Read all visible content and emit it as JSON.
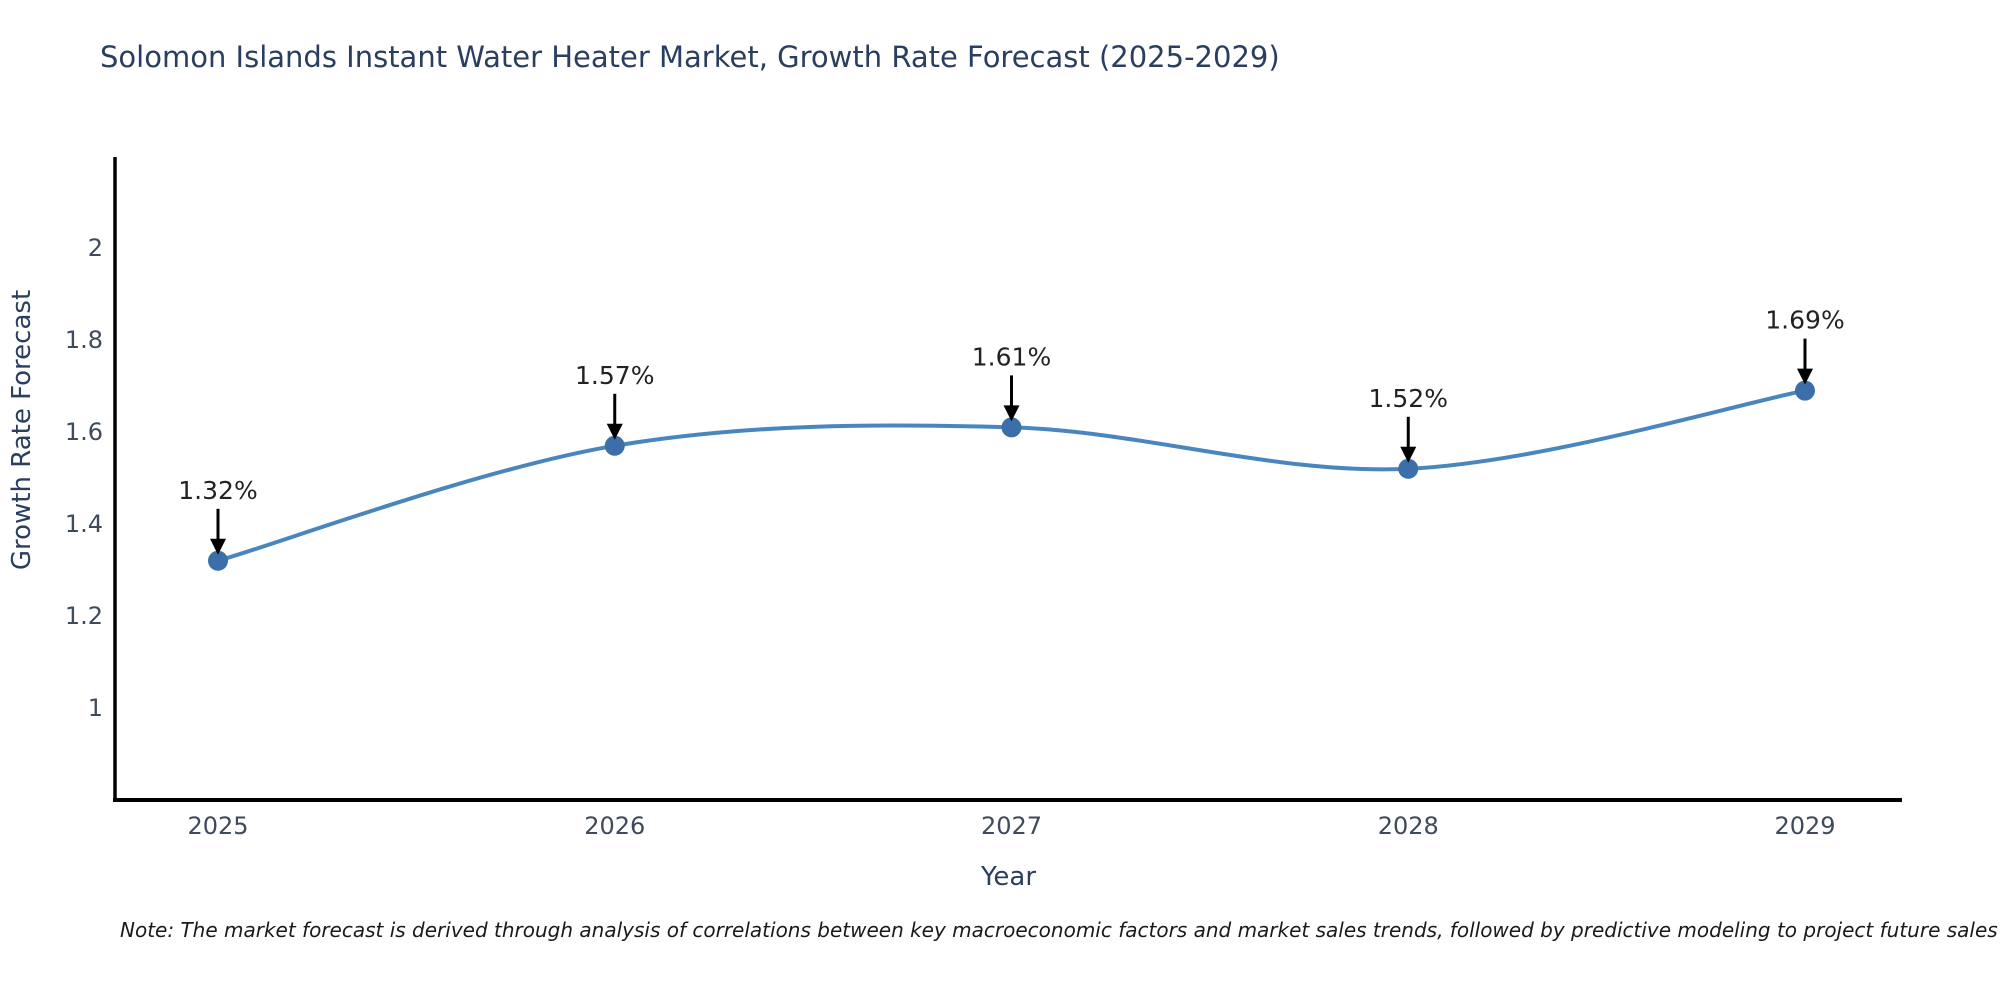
{
  "title": "Solomon Islands Instant Water Heater Market, Growth Rate Forecast (2025-2029)",
  "note": "Note: The market forecast is derived through analysis of correlations between key macroeconomic factors and market sales trends, followed by predictive modeling to project future sales",
  "chart_data": {
    "type": "line",
    "title": "Solomon Islands Instant Water Heater Market, Growth Rate Forecast (2025-2029)",
    "xlabel": "Year",
    "ylabel": "Growth Rate Forecast",
    "x": [
      2025,
      2026,
      2027,
      2028,
      2029
    ],
    "categories": [
      "2025",
      "2026",
      "2027",
      "2028",
      "2029"
    ],
    "series": [
      {
        "name": "Growth Rate Forecast",
        "values": [
          1.32,
          1.57,
          1.61,
          1.52,
          1.69
        ]
      }
    ],
    "point_labels": [
      "1.32%",
      "1.57%",
      "1.61%",
      "1.52%",
      "1.69%"
    ],
    "yticks": [
      1,
      1.2,
      1.4,
      1.6,
      1.8,
      2
    ],
    "ylim": [
      0.8,
      2.2
    ],
    "grid": false,
    "legend": false,
    "smooth": true,
    "colors": {
      "line": "#4a86be",
      "marker": "#3c6eaa",
      "arrow": "#000000",
      "axis_line": "#000000",
      "tick_text": "#3f4a5a",
      "axis_title_text": "#2a3f5f",
      "annotation_text": "#222222"
    }
  }
}
